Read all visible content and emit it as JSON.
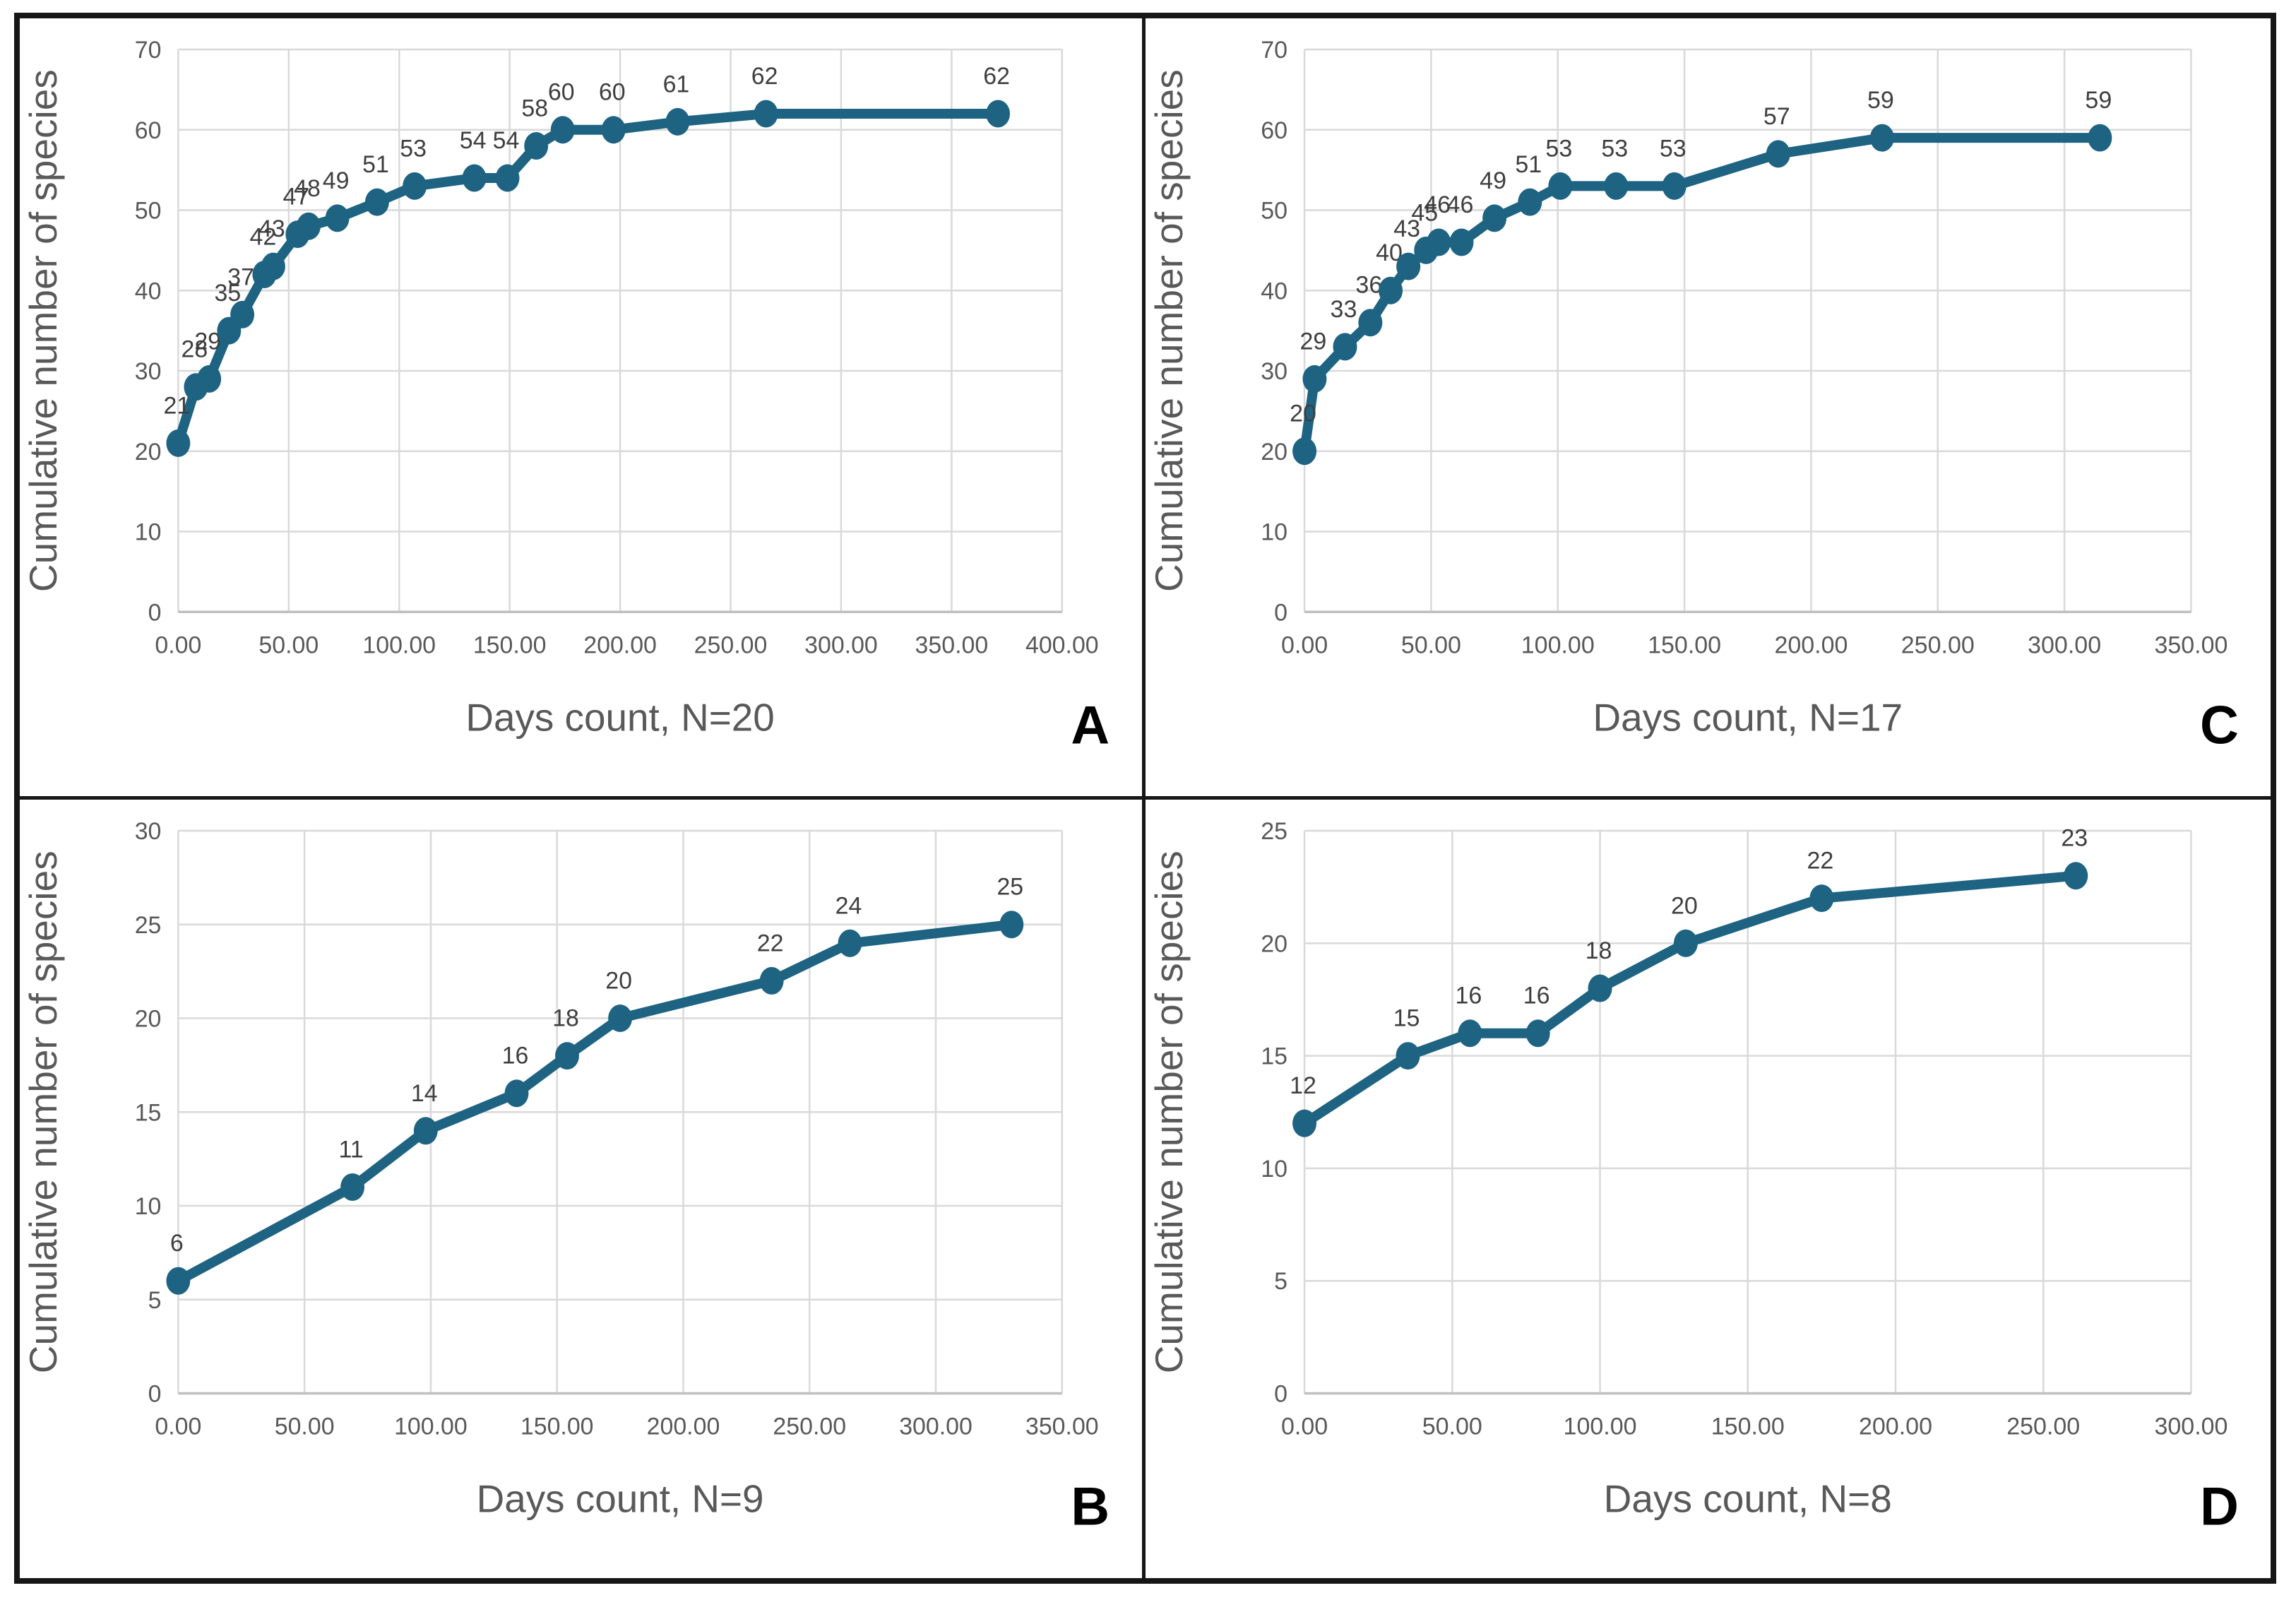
{
  "figure": {
    "kind": "2x2 species accumulation curve panels",
    "panel_order": [
      "A",
      "C",
      "B",
      "D"
    ],
    "background": "#ffffff",
    "frame_border_color": "#161616"
  },
  "styles": {
    "line_color": "#1f6383",
    "grid_color": "#d9d9d9",
    "axis_line_color": "#bfbfbf",
    "tick_color": "#595959",
    "axis_title_color": "#595959",
    "data_label_color": "#3f3f3f",
    "panel_letter_color": "#000000"
  },
  "chart_data": [
    {
      "type": "line",
      "panel_letter": "A",
      "xlabel": "Days count, N=20",
      "ylabel": "Cumulative number of species",
      "xlim": [
        0,
        400
      ],
      "ylim": [
        0,
        70
      ],
      "grid": true,
      "legend": "none",
      "x_ticks": [
        "0.00",
        "50.00",
        "100.00",
        "150.00",
        "200.00",
        "250.00",
        "300.00",
        "350.00",
        "400.00"
      ],
      "y_ticks": [
        "0",
        "10",
        "20",
        "30",
        "40",
        "50",
        "60",
        "70"
      ],
      "x": [
        0,
        8,
        14,
        23,
        29,
        39,
        43,
        54,
        59,
        72,
        90,
        107,
        134,
        149,
        162,
        174,
        197,
        226,
        266,
        371
      ],
      "y": [
        21,
        28,
        29,
        35,
        37,
        42,
        43,
        47,
        48,
        49,
        51,
        53,
        54,
        54,
        58,
        60,
        60,
        61,
        62,
        62
      ],
      "data_labels": [
        "21",
        "28",
        "29",
        "35",
        "37",
        "42",
        "43",
        "47",
        "48",
        "49",
        "51",
        "53",
        "54",
        "54",
        "58",
        "60",
        "60",
        "61",
        "62",
        "62"
      ]
    },
    {
      "type": "line",
      "panel_letter": "C",
      "xlabel": "Days count, N=17",
      "ylabel": "Cumulative number of species",
      "xlim": [
        0,
        350
      ],
      "ylim": [
        0,
        70
      ],
      "grid": true,
      "legend": "none",
      "x_ticks": [
        "0.00",
        "50.00",
        "100.00",
        "150.00",
        "200.00",
        "250.00",
        "300.00",
        "350.00"
      ],
      "y_ticks": [
        "0",
        "10",
        "20",
        "30",
        "40",
        "50",
        "60",
        "70"
      ],
      "x": [
        0,
        4,
        16,
        26,
        34,
        41,
        48,
        53,
        62,
        75,
        89,
        101,
        123,
        146,
        187,
        228,
        314
      ],
      "y": [
        20,
        29,
        33,
        36,
        40,
        43,
        45,
        46,
        46,
        49,
        51,
        53,
        53,
        53,
        57,
        59,
        59
      ],
      "data_labels": [
        "20",
        "29",
        "33",
        "36",
        "40",
        "43",
        "45",
        "46",
        "46",
        "49",
        "51",
        "53",
        "53",
        "53",
        "57",
        "59",
        "59"
      ]
    },
    {
      "type": "line",
      "panel_letter": "B",
      "xlabel": "Days count, N=9",
      "ylabel": "Cumulative number of species",
      "xlim": [
        0,
        350
      ],
      "ylim": [
        0,
        30
      ],
      "grid": true,
      "legend": "none",
      "x_ticks": [
        "0.00",
        "50.00",
        "100.00",
        "150.00",
        "200.00",
        "250.00",
        "300.00",
        "350.00"
      ],
      "y_ticks": [
        "0",
        "5",
        "10",
        "15",
        "20",
        "25",
        "30"
      ],
      "x": [
        0,
        69,
        98,
        134,
        154,
        175,
        235,
        266,
        330
      ],
      "y": [
        6,
        11,
        14,
        16,
        18,
        20,
        22,
        24,
        25
      ],
      "data_labels": [
        "6",
        "11",
        "14",
        "16",
        "18",
        "20",
        "22",
        "24",
        "25"
      ]
    },
    {
      "type": "line",
      "panel_letter": "D",
      "xlabel": "Days count, N=8",
      "ylabel": "Cumulative number of species",
      "xlim": [
        0,
        300
      ],
      "ylim": [
        0,
        25
      ],
      "grid": true,
      "legend": "none",
      "x_ticks": [
        "0.00",
        "50.00",
        "100.00",
        "150.00",
        "200.00",
        "250.00",
        "300.00"
      ],
      "y_ticks": [
        "0",
        "5",
        "10",
        "15",
        "20",
        "25"
      ],
      "x": [
        0,
        35,
        56,
        79,
        100,
        129,
        175,
        261
      ],
      "y": [
        12,
        15,
        16,
        16,
        18,
        20,
        22,
        23
      ],
      "data_labels": [
        "12",
        "15",
        "16",
        "16",
        "18",
        "20",
        "22",
        "23"
      ]
    }
  ]
}
